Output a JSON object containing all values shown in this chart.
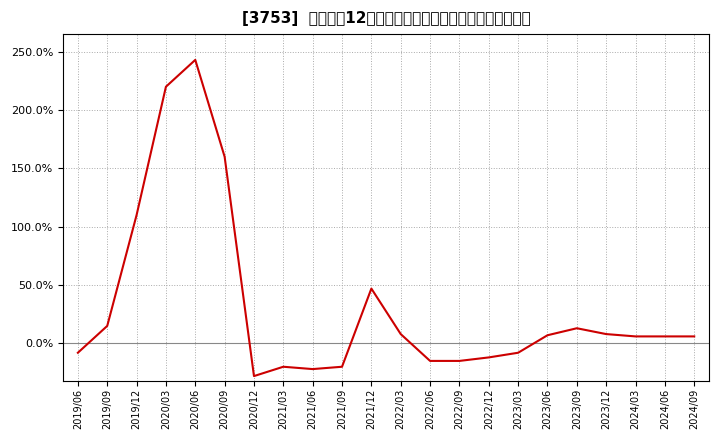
{
  "title": "[3753]  売上高の12か月移動合計の対前年同期増減率の推移",
  "x_labels": [
    "2019/06",
    "2019/09",
    "2019/12",
    "2020/03",
    "2020/06",
    "2020/09",
    "2020/12",
    "2021/03",
    "2021/06",
    "2021/09",
    "2021/12",
    "2022/03",
    "2022/06",
    "2022/09",
    "2022/12",
    "2023/03",
    "2023/06",
    "2023/09",
    "2023/12",
    "2024/03",
    "2024/06",
    "2024/09"
  ],
  "y_values": [
    -8.0,
    15.0,
    110.0,
    220.0,
    243.0,
    160.0,
    -28.0,
    -20.0,
    -22.0,
    -20.0,
    47.0,
    8.0,
    -15.0,
    -15.0,
    -12.0,
    -8.0,
    7.0,
    13.0,
    8.0,
    6.0,
    6.0,
    6.0
  ],
  "line_color": "#cc0000",
  "background_color": "#ffffff",
  "plot_bg_color": "#ffffff",
  "grid_color": "#aaaaaa",
  "ylim_min": -32.0,
  "ylim_max": 265.0,
  "yticks": [
    0.0,
    50.0,
    100.0,
    150.0,
    200.0,
    250.0
  ],
  "title_fontsize": 11,
  "zero_line_color": "#888888"
}
